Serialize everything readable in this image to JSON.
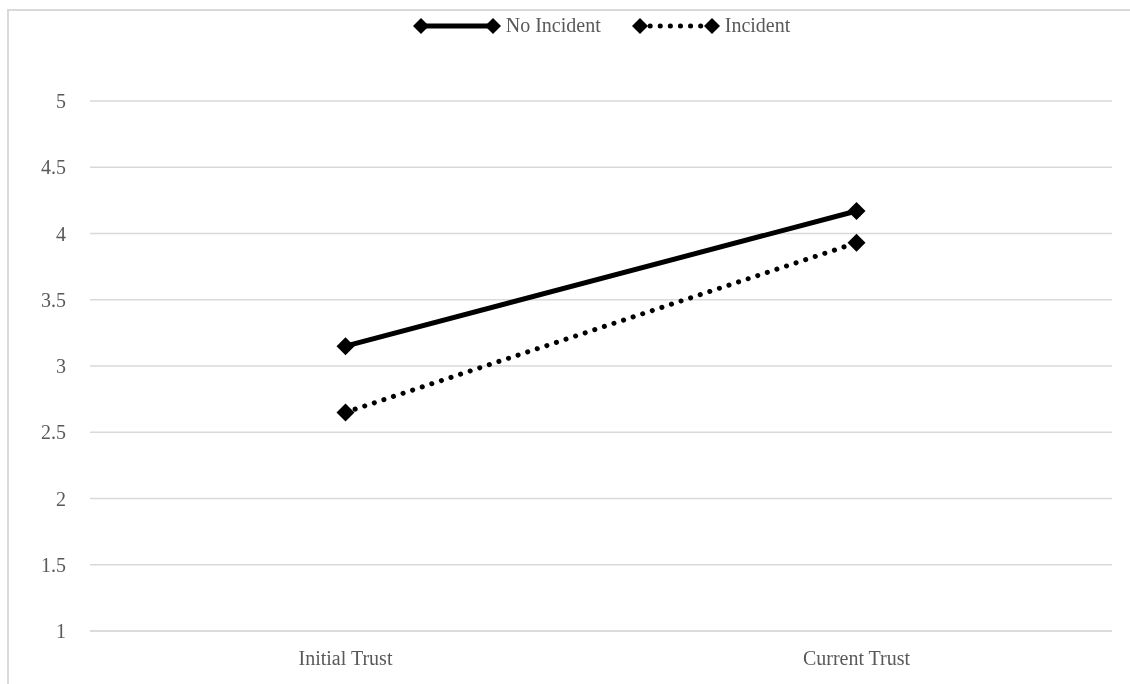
{
  "chart_data": {
    "type": "line",
    "categories": [
      "Initial Trust",
      "Current Trust"
    ],
    "series": [
      {
        "name": "No Incident",
        "color": "#000000",
        "values": [
          3.15,
          4.17
        ],
        "line_style": "solid"
      },
      {
        "name": "Incident",
        "color": "#000000",
        "values": [
          2.65,
          3.93
        ],
        "line_style": "dotted"
      }
    ],
    "ylim": [
      1,
      5
    ],
    "yticks": [
      1,
      1.5,
      2,
      2.5,
      3,
      3.5,
      4,
      4.5,
      5
    ],
    "grid": "y",
    "legend": "top",
    "marker": "diamond"
  }
}
